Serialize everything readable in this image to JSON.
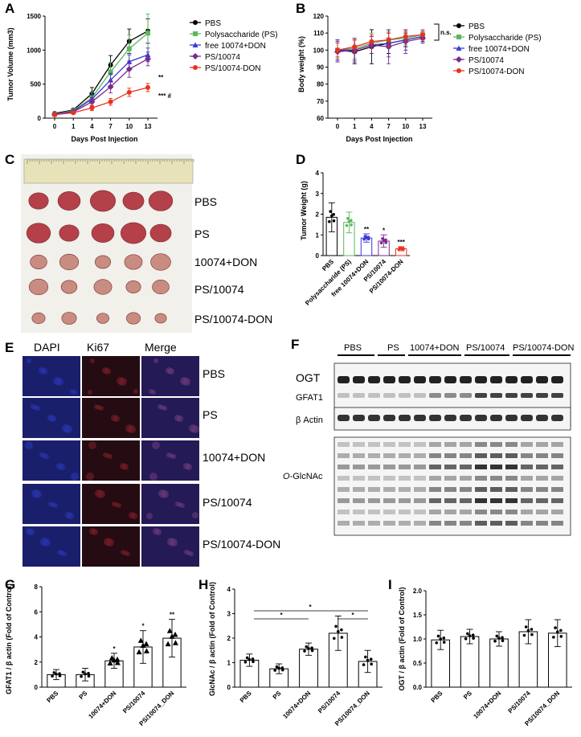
{
  "panels": [
    "A",
    "B",
    "C",
    "D",
    "E",
    "F",
    "G",
    "H",
    "I"
  ],
  "colors": {
    "PBS": "#000000",
    "PS": "#5cb85c",
    "free": "#3a3ad8",
    "PS10074": "#7b2a8c",
    "PSDON": "#e8321e"
  },
  "chart_data": [
    {
      "panel": "A",
      "type": "line",
      "xlabel": "Days Post Injection",
      "ylabel": "Tumor Volume (mm3)",
      "x": [
        0,
        1,
        4,
        7,
        10,
        13
      ],
      "ylim": [
        0,
        1500
      ],
      "yticks": [
        0,
        500,
        1000,
        1500
      ],
      "series": [
        {
          "name": "PBS",
          "marker": "circle",
          "values": [
            70,
            120,
            360,
            780,
            1130,
            1280
          ],
          "err": [
            20,
            25,
            90,
            140,
            180,
            180
          ]
        },
        {
          "name": "Polysaccharide (PS)",
          "marker": "square",
          "values": [
            60,
            110,
            300,
            680,
            1020,
            1250
          ],
          "err": [
            20,
            25,
            80,
            140,
            200,
            280
          ]
        },
        {
          "name": "free 10074+DON",
          "marker": "triangle",
          "values": [
            60,
            100,
            280,
            560,
            830,
            930
          ],
          "err": [
            20,
            25,
            60,
            100,
            100,
            100
          ]
        },
        {
          "name": "PS/10074",
          "marker": "diamond",
          "values": [
            55,
            90,
            240,
            460,
            720,
            870
          ],
          "err": [
            15,
            20,
            60,
            90,
            120,
            100
          ]
        },
        {
          "name": "PS/10074-DON",
          "marker": "circle",
          "values": [
            50,
            80,
            150,
            240,
            380,
            450
          ],
          "err": [
            15,
            20,
            40,
            50,
            60,
            60
          ]
        }
      ],
      "annotations": [
        "**",
        "*** #"
      ]
    },
    {
      "panel": "B",
      "type": "line",
      "xlabel": "Days Post Injection",
      "ylabel": "Body weight (%)",
      "x": [
        0,
        1,
        4,
        7,
        10,
        13
      ],
      "ylim": [
        60,
        120
      ],
      "yticks": [
        60,
        70,
        80,
        90,
        100,
        110,
        120
      ],
      "series": [
        {
          "name": "PBS",
          "marker": "circle",
          "values": [
            100,
            99,
            102,
            104,
            106,
            108
          ],
          "err": [
            6,
            7,
            10,
            6,
            4,
            3
          ]
        },
        {
          "name": "Polysaccharide (PS)",
          "marker": "square",
          "values": [
            100,
            101,
            104,
            106,
            107,
            109
          ],
          "err": [
            5,
            6,
            6,
            5,
            4,
            3
          ]
        },
        {
          "name": "free 10074+DON",
          "marker": "triangle",
          "values": [
            100,
            100,
            103,
            104,
            106,
            108
          ],
          "err": [
            6,
            6,
            5,
            8,
            6,
            3
          ]
        },
        {
          "name": "PS/10074",
          "marker": "diamond",
          "values": [
            99,
            100,
            103,
            102,
            105,
            107
          ],
          "err": [
            6,
            7,
            5,
            10,
            7,
            3
          ]
        },
        {
          "name": "PS/10074-DON",
          "marker": "circle",
          "values": [
            100,
            102,
            105,
            106,
            108,
            109
          ],
          "err": [
            4,
            4,
            4,
            4,
            3,
            3
          ]
        }
      ],
      "annotations": [
        "n.s."
      ]
    },
    {
      "panel": "D",
      "type": "bar",
      "ylabel": "Tumor Weight (g)",
      "ylim": [
        0,
        4
      ],
      "yticks": [
        0,
        1,
        2,
        3,
        4
      ],
      "categories": [
        "PBS",
        "Polysaccharide (PS)",
        "free 10074+DON",
        "PS/10074",
        "PS/10074-DON"
      ],
      "values": [
        1.85,
        1.6,
        0.85,
        0.7,
        0.33
      ],
      "err": [
        0.7,
        0.5,
        0.2,
        0.3,
        0.1
      ],
      "stars": [
        "",
        "",
        "**",
        "*",
        "***"
      ]
    },
    {
      "panel": "G",
      "type": "bar",
      "ylabel": "GFAT1 / β actin (Fold of Control)",
      "ylim": [
        0,
        8
      ],
      "yticks": [
        0,
        2,
        4,
        6,
        8
      ],
      "categories": [
        "PBS",
        "PS",
        "10074+DON",
        "PS/10074",
        "PS/10074_DON"
      ],
      "values": [
        1.0,
        1.0,
        2.1,
        3.2,
        3.9
      ],
      "err": [
        0.4,
        0.5,
        0.6,
        1.3,
        1.5
      ],
      "stars": [
        "",
        "",
        "*",
        "*",
        "**"
      ]
    },
    {
      "panel": "H",
      "type": "bar",
      "ylabel": "GlcNAc / β actin (Fold of Control)",
      "ylim": [
        0,
        4
      ],
      "yticks": [
        0,
        1,
        2,
        3,
        4
      ],
      "categories": [
        "PBS",
        "PS",
        "10074+DON",
        "PS/10074",
        "PS/10074_DON"
      ],
      "values": [
        1.1,
        0.75,
        1.55,
        2.2,
        1.05
      ],
      "err": [
        0.25,
        0.2,
        0.25,
        0.7,
        0.45
      ],
      "stars": [
        "",
        "",
        "",
        "",
        ""
      ]
    },
    {
      "panel": "I",
      "type": "bar",
      "ylabel": "OGT / β actin (Fold of Control)",
      "ylim": [
        0,
        2.0
      ],
      "yticks": [
        0.0,
        0.5,
        1.0,
        1.5,
        2.0
      ],
      "categories": [
        "PBS",
        "PS",
        "10074+DON",
        "PS/10074",
        "PS/10074_DON"
      ],
      "values": [
        0.98,
        1.05,
        1.0,
        1.15,
        1.12
      ],
      "err": [
        0.2,
        0.15,
        0.15,
        0.25,
        0.28
      ],
      "stars": [
        "",
        "",
        "",
        "",
        ""
      ]
    }
  ],
  "photo": {
    "groups": [
      "PBS",
      "PS",
      "10074+DON",
      "PS/10074",
      "PS/10074-DON"
    ]
  },
  "micro": {
    "columns": [
      "DAPI",
      "Ki67",
      "Merge"
    ],
    "rows": [
      "PBS",
      "PS",
      "10074+DON",
      "PS/10074",
      "PS/10074-DON"
    ]
  },
  "western": {
    "groups": [
      "PBS",
      "PS",
      "10074+DON",
      "PS/10074",
      "PS/10074-DON"
    ],
    "bands": [
      "OGT",
      "GFAT1",
      "β Actin"
    ],
    "glc_prefix": "O",
    "glc_label": "-GlcNAc"
  },
  "sig": [
    "*",
    "*",
    "*"
  ]
}
